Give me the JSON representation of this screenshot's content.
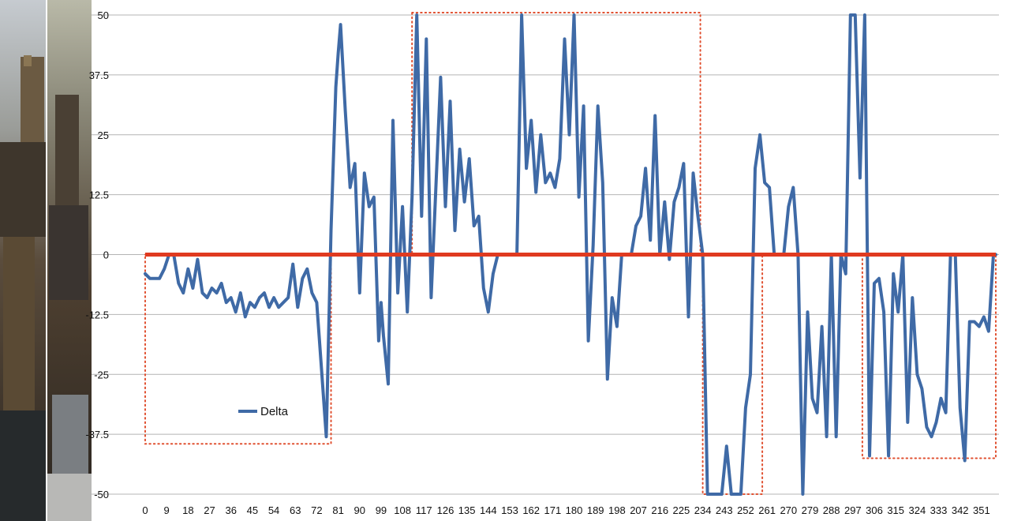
{
  "chart_data": {
    "type": "line",
    "title": "",
    "xlabel": "",
    "ylabel": "",
    "ylim": [
      -50,
      50
    ],
    "xlim": [
      0,
      357
    ],
    "y_ticks": [
      -50,
      -37.5,
      -25,
      -12.5,
      0,
      12.5,
      25,
      37.5,
      50
    ],
    "y_tick_labels": [
      "-50",
      "-37.5",
      "-25",
      "-12.5",
      "0",
      "12.5",
      "25",
      "37.5",
      "50"
    ],
    "x_ticks": [
      0,
      9,
      18,
      27,
      36,
      45,
      54,
      63,
      72,
      81,
      90,
      99,
      108,
      117,
      126,
      135,
      144,
      153,
      162,
      171,
      180,
      189,
      198,
      207,
      216,
      225,
      234,
      243,
      252,
      261,
      270,
      279,
      288,
      297,
      306,
      315,
      324,
      333,
      342,
      351
    ],
    "grid": "horizontal",
    "legend_position": "bottom-left",
    "series": [
      {
        "name": "Delta",
        "color": "#3f6aa6",
        "x": [
          0,
          2,
          4,
          6,
          8,
          10,
          12,
          14,
          16,
          18,
          20,
          22,
          24,
          26,
          28,
          30,
          32,
          34,
          36,
          38,
          40,
          42,
          44,
          46,
          48,
          50,
          52,
          54,
          56,
          58,
          60,
          62,
          64,
          66,
          68,
          70,
          72,
          74,
          76,
          78,
          80,
          81,
          82,
          84,
          86,
          88,
          90,
          92,
          94,
          96,
          98,
          99,
          100,
          102,
          104,
          106,
          108,
          110,
          112,
          114,
          116,
          118,
          120,
          122,
          124,
          126,
          128,
          130,
          132,
          134,
          136,
          138,
          140,
          142,
          144,
          146,
          148,
          150,
          152,
          154,
          156,
          158,
          160,
          162,
          164,
          166,
          168,
          170,
          172,
          174,
          176,
          178,
          180,
          182,
          184,
          186,
          188,
          190,
          192,
          194,
          196,
          198,
          200,
          202,
          204,
          206,
          208,
          210,
          212,
          214,
          216,
          218,
          220,
          222,
          224,
          226,
          228,
          230,
          232,
          234,
          236,
          238,
          240,
          242,
          244,
          246,
          248,
          250,
          252,
          254,
          256,
          258,
          260,
          262,
          264,
          266,
          268,
          270,
          272,
          274,
          276,
          278,
          280,
          282,
          284,
          286,
          288,
          290,
          292,
          294,
          296,
          298,
          300,
          302,
          304,
          306,
          308,
          310,
          312,
          314,
          316,
          318,
          320,
          322,
          324,
          326,
          328,
          330,
          332,
          334,
          336,
          338,
          340,
          342,
          344,
          346,
          348,
          350,
          352,
          354,
          356,
          357
        ],
        "y": [
          -4,
          -5,
          -5,
          -5,
          -3,
          0,
          0,
          -6,
          -8,
          -3,
          -7,
          -1,
          -8,
          -9,
          -7,
          -8,
          -6,
          -10,
          -9,
          -12,
          -8,
          -13,
          -10,
          -11,
          -9,
          -8,
          -11,
          -9,
          -11,
          -10,
          -9,
          -2,
          -11,
          -5,
          -3,
          -8,
          -10,
          -24,
          -38,
          5,
          35,
          42,
          48,
          30,
          14,
          19,
          -8,
          17,
          10,
          12,
          -18,
          -10,
          -17,
          -27,
          28,
          -8,
          10,
          -12,
          12,
          50,
          8,
          45,
          -9,
          14,
          37,
          10,
          32,
          5,
          22,
          11,
          20,
          6,
          8,
          -7,
          -12,
          -4,
          0,
          0,
          0,
          0,
          0,
          50,
          18,
          28,
          13,
          25,
          15,
          17,
          14,
          20,
          45,
          25,
          50,
          12,
          31,
          -18,
          2,
          31,
          15,
          -26,
          -9,
          -15,
          0,
          0,
          0,
          6,
          8,
          18,
          3,
          29,
          0,
          11,
          -1,
          11,
          14,
          19,
          -13,
          17,
          8,
          0,
          -50,
          -50,
          -50,
          -50,
          -40,
          -50,
          -50,
          -50,
          -32,
          -25,
          18,
          25,
          15,
          14,
          0,
          0,
          0,
          10,
          14,
          0,
          -50,
          -12,
          -30,
          -33,
          -15,
          -38,
          0,
          -38,
          0,
          -4,
          50,
          50,
          16,
          50,
          -42,
          -6,
          -5,
          -12,
          -42,
          -4,
          -12,
          0,
          -35,
          -9,
          -25,
          -28,
          -36,
          -38,
          -35,
          -30,
          -33,
          0,
          0,
          -32,
          -43,
          -14,
          -14,
          -15,
          -13,
          -16,
          0,
          0
        ]
      }
    ],
    "reference_line": {
      "y": 0,
      "color": "#e03a20"
    },
    "highlight_color": "#e05030",
    "highlight_regions": [
      {
        "x0": 0,
        "x1": 78,
        "y0": -39.5,
        "y1": 0
      },
      {
        "x0": 112,
        "x1": 233,
        "y0": 0,
        "y1": 50.5
      },
      {
        "x0": 234,
        "x1": 259,
        "y0": -50,
        "y1": 0
      },
      {
        "x0": 301,
        "x1": 357,
        "y0": -42.5,
        "y1": 0
      }
    ]
  }
}
